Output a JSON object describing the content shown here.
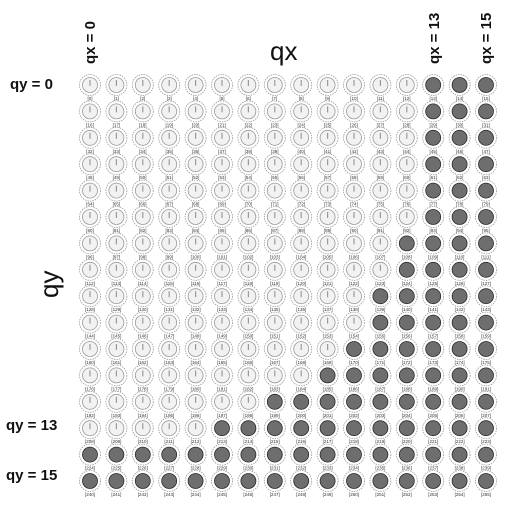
{
  "diagram": {
    "axis_x_label": "qx",
    "axis_y_label": "qy",
    "col_labels": [
      {
        "col": 0,
        "text": "qx = 0"
      },
      {
        "col": 13,
        "text": "qx = 13"
      },
      {
        "col": 15,
        "text": "qx = 15"
      }
    ],
    "row_labels": [
      {
        "row": 0,
        "text": "qy = 0"
      },
      {
        "row": 13,
        "text": "qy = 13"
      },
      {
        "row": 15,
        "text": "qy = 15"
      }
    ],
    "grid": {
      "cols": 16,
      "rows": 16,
      "cell_index_start": 0
    },
    "colors": {
      "empty_fill": "#f2f2f2",
      "empty_stroke": "#999999",
      "filled_fill": "#6e6e6e",
      "filled_stroke": "#2a2a2a",
      "needle": "#9a9a9a",
      "index_text": "#333333"
    },
    "filled_cells_by_row": [
      [
        13,
        14,
        15
      ],
      [
        13,
        14,
        15
      ],
      [
        13,
        14,
        15
      ],
      [
        13,
        14,
        15
      ],
      [
        13,
        14,
        15
      ],
      [
        13,
        14,
        15
      ],
      [
        12,
        13,
        14,
        15
      ],
      [
        12,
        13,
        14,
        15
      ],
      [
        11,
        12,
        13,
        14,
        15
      ],
      [
        11,
        12,
        13,
        14,
        15
      ],
      [
        10,
        11,
        12,
        13,
        14,
        15
      ],
      [
        9,
        10,
        11,
        12,
        13,
        14,
        15
      ],
      [
        7,
        8,
        9,
        10,
        11,
        12,
        13,
        14,
        15
      ],
      [
        5,
        6,
        7,
        8,
        9,
        10,
        11,
        12,
        13,
        14,
        15
      ],
      [
        0,
        1,
        2,
        3,
        4,
        5,
        6,
        7,
        8,
        9,
        10,
        11,
        12,
        13,
        14,
        15
      ],
      [
        0,
        1,
        2,
        3,
        4,
        5,
        6,
        7,
        8,
        9,
        10,
        11,
        12,
        13,
        14,
        15
      ]
    ]
  }
}
